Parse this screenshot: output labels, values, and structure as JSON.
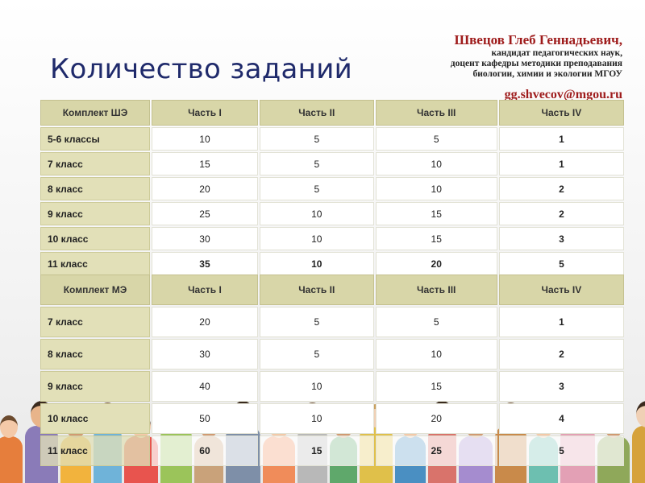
{
  "slide": {
    "title": "Количество заданий",
    "author": {
      "name": "Швецов Глеб Геннадьевич,",
      "lines": [
        "кандидат педагогических наук,",
        "доцент кафедры методики преподавания",
        "биологии, химии и экологии МГОУ"
      ],
      "email": "gg.shvecov@mgou.ru"
    }
  },
  "table_she": {
    "headers": [
      "Комплект ШЭ",
      "Часть I",
      "Часть II",
      "Часть III",
      "Часть IV"
    ],
    "rows": [
      [
        "5-6 классы",
        "10",
        "5",
        "5",
        "1"
      ],
      [
        "7 класс",
        "15",
        "5",
        "10",
        "1"
      ],
      [
        "8 класс",
        "20",
        "5",
        "10",
        "2"
      ],
      [
        "9 класс",
        "25",
        "10",
        "15",
        "2"
      ],
      [
        "10 класс",
        "30",
        "10",
        "15",
        "3"
      ],
      [
        "11 класс",
        "35",
        "10",
        "20",
        "5"
      ]
    ]
  },
  "table_me": {
    "headers": [
      "Комплект МЭ",
      "Часть I",
      "Часть II",
      "Часть III",
      "Часть IV"
    ],
    "rows": [
      [
        "7 класс",
        "20",
        "5",
        "5",
        "1"
      ],
      [
        "8 класс",
        "30",
        "5",
        "10",
        "2"
      ],
      [
        "9 класс",
        "40",
        "10",
        "15",
        "3"
      ],
      [
        "10 класс",
        "50",
        "10",
        "20",
        "4"
      ],
      [
        "11 класс",
        "60",
        "15",
        "25",
        "5"
      ]
    ]
  },
  "colors": {
    "title": "#1f2a6b",
    "author": "#9e1b1b",
    "header_bg": "#d8d6a8",
    "row_label_bg": "#e2e0b8"
  }
}
